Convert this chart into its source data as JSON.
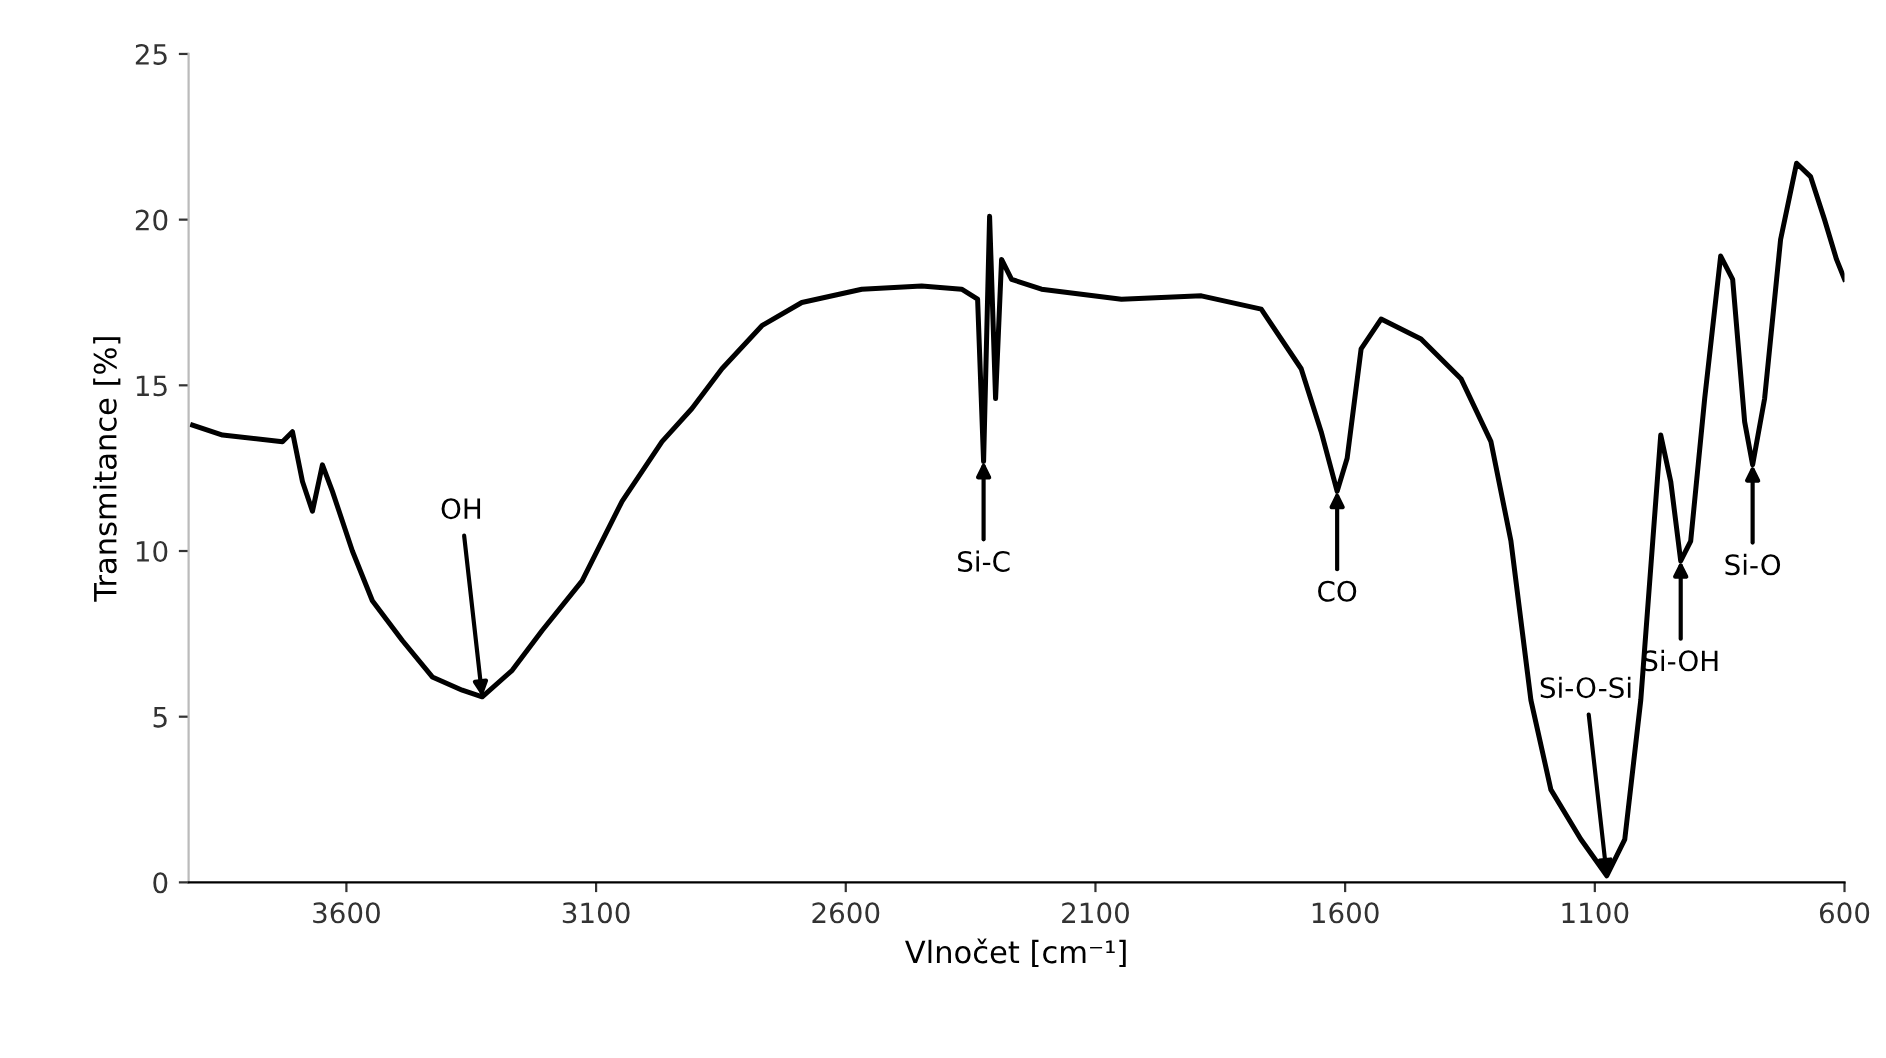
{
  "chart_data": {
    "type": "line",
    "xlabel": "Vlnočet [cm⁻¹]",
    "ylabel": "Transmitance [%]",
    "x": [
      3908,
      3848,
      3728,
      3708,
      3688,
      3668,
      3648,
      3628,
      3588,
      3548,
      3488,
      3428,
      3368,
      3328,
      3268,
      3208,
      3128,
      3048,
      2968,
      2908,
      2848,
      2768,
      2688,
      2568,
      2448,
      2368,
      2336,
      2324,
      2312,
      2300,
      2288,
      2268,
      2208,
      2048,
      1888,
      1768,
      1688,
      1648,
      1616,
      1596,
      1568,
      1528,
      1448,
      1368,
      1308,
      1268,
      1228,
      1188,
      1128,
      1076,
      1040,
      1008,
      984,
      968,
      948,
      928,
      908,
      880,
      848,
      824,
      800,
      784,
      760,
      728,
      696,
      668,
      640,
      616,
      600
    ],
    "series": [
      {
        "color": "#000000",
        "values": [
          13.8,
          13.5,
          13.3,
          13.6,
          12.1,
          11.2,
          12.6,
          11.8,
          10.0,
          8.5,
          7.3,
          6.2,
          5.8,
          5.6,
          6.4,
          7.6,
          9.1,
          11.5,
          13.3,
          14.3,
          15.5,
          16.8,
          17.5,
          17.9,
          18.0,
          17.9,
          17.6,
          12.7,
          20.1,
          14.6,
          18.8,
          18.2,
          17.9,
          17.6,
          17.7,
          17.3,
          15.5,
          13.6,
          11.8,
          12.8,
          16.1,
          17.0,
          16.4,
          15.2,
          13.3,
          10.3,
          5.5,
          2.8,
          1.3,
          0.2,
          1.3,
          5.5,
          10.3,
          13.5,
          12.1,
          9.7,
          10.3,
          14.6,
          18.9,
          18.2,
          13.9,
          12.6,
          14.6,
          19.4,
          21.7,
          21.3,
          20.0,
          18.8,
          18.2
        ]
      }
    ],
    "xlim": [
      3916,
      600
    ],
    "xticks": [
      3600,
      3100,
      2600,
      2100,
      1600,
      1100,
      600
    ],
    "ylim": [
      0,
      25
    ],
    "yticks": [
      0,
      5,
      10,
      15,
      20,
      25
    ],
    "grid": false,
    "marker": "none",
    "line_style": "solid",
    "annotations": [
      {
        "text": "OH",
        "x": 3328,
        "y": 5.6
      },
      {
        "text": "Si-C",
        "x": 2324,
        "y": 12.7
      },
      {
        "text": "CO",
        "x": 1616,
        "y": 11.8
      },
      {
        "text": "Si-O-Si",
        "x": 1076,
        "y": 0.2
      },
      {
        "text": "Si-OH",
        "x": 928,
        "y": 9.7
      },
      {
        "text": "Si-O",
        "x": 784,
        "y": 12.6
      }
    ]
  }
}
